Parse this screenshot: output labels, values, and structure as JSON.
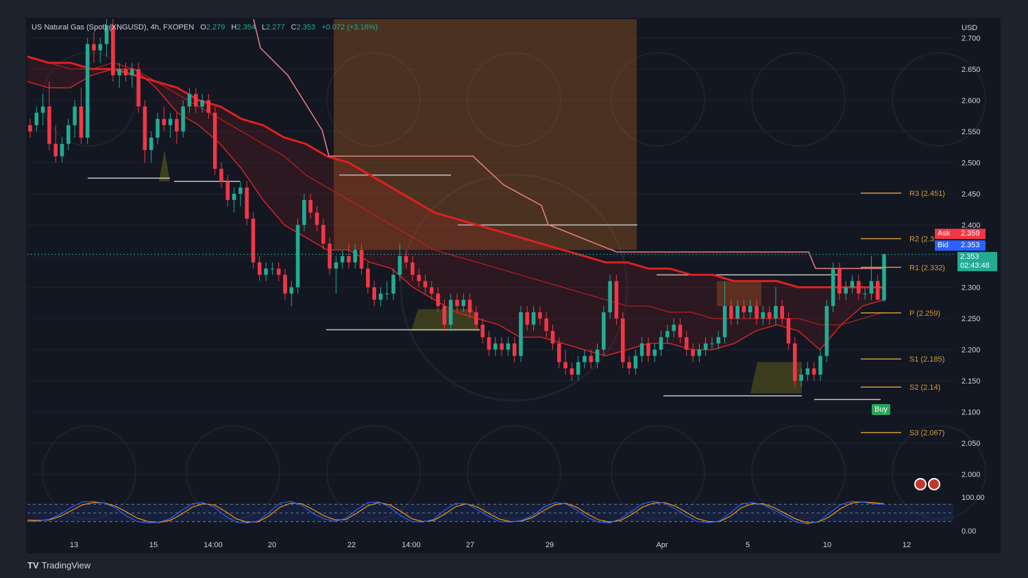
{
  "header": {
    "symbol": "US Natural Gas (Spot) (XNGUSD), 4h, FXOPEN",
    "open_label": "O",
    "open": "2.279",
    "high_label": "H",
    "high": "2.354",
    "low_label": "L",
    "low": "2.277",
    "close_label": "C",
    "close": "2.353",
    "change": "+0.072 (+3.16%)"
  },
  "price_scale": {
    "currency": "USD",
    "ticks": [
      "2.700",
      "2.650",
      "2.600",
      "2.550",
      "2.500",
      "2.450",
      "2.400",
      "2.350",
      "2.300",
      "2.250",
      "2.200",
      "2.150",
      "2.100",
      "2.050",
      "2.000"
    ]
  },
  "osc_scale": {
    "ticks": [
      "100.00",
      "0.00"
    ]
  },
  "time_axis": [
    "13",
    "15",
    "14:00",
    "20",
    "22",
    "14:00",
    "27",
    "29",
    "Apr",
    "5",
    "10",
    "12"
  ],
  "pivots": [
    {
      "label": "R3 (2.451)",
      "value": 2.451
    },
    {
      "label": "R2 (2.3",
      "value": 2.378
    },
    {
      "label": "R1 (2.332)",
      "value": 2.332
    },
    {
      "label": "P (2.259)",
      "value": 2.259
    },
    {
      "label": "S1 (2.185)",
      "value": 2.185
    },
    {
      "label": "S2 (2.14)",
      "value": 2.14
    },
    {
      "label": "S3 (2.067)",
      "value": 2.067
    }
  ],
  "quote": {
    "ask_label": "Ask",
    "ask": "2.359",
    "bid_label": "Bid",
    "bid": "2.353",
    "last": "2.353",
    "countdown": "02:43:48"
  },
  "signal": {
    "buy_label": "Buy"
  },
  "branding": {
    "logo_text": "TradingView"
  },
  "colors": {
    "up": "#22ab94",
    "down": "#f23645",
    "ema": "#e02020",
    "pivot": "#d49a3a"
  },
  "chart_data": {
    "type": "candlestick",
    "title": "US Natural Gas (Spot) (XNGUSD), 4h, FXOPEN",
    "ylabel": "USD",
    "ylim": [
      1.97,
      2.73
    ],
    "candles": [
      [
        2.56,
        2.57,
        2.54,
        2.55
      ],
      [
        2.56,
        2.59,
        2.55,
        2.58
      ],
      [
        2.58,
        2.61,
        2.56,
        2.59
      ],
      [
        2.59,
        2.63,
        2.52,
        2.53
      ],
      [
        2.53,
        2.56,
        2.5,
        2.51
      ],
      [
        2.51,
        2.54,
        2.5,
        2.53
      ],
      [
        2.53,
        2.57,
        2.52,
        2.56
      ],
      [
        2.56,
        2.6,
        2.54,
        2.59
      ],
      [
        2.59,
        2.62,
        2.53,
        2.54
      ],
      [
        2.54,
        2.7,
        2.53,
        2.69
      ],
      [
        2.69,
        2.71,
        2.66,
        2.68
      ],
      [
        2.68,
        2.7,
        2.66,
        2.69
      ],
      [
        2.69,
        2.73,
        2.67,
        2.72
      ],
      [
        2.72,
        2.73,
        2.63,
        2.64
      ],
      [
        2.64,
        2.66,
        2.62,
        2.65
      ],
      [
        2.65,
        2.66,
        2.63,
        2.64
      ],
      [
        2.64,
        2.66,
        2.62,
        2.65
      ],
      [
        2.65,
        2.66,
        2.58,
        2.59
      ],
      [
        2.59,
        2.6,
        2.5,
        2.52
      ],
      [
        2.52,
        2.55,
        2.5,
        2.54
      ],
      [
        2.54,
        2.58,
        2.53,
        2.57
      ],
      [
        2.57,
        2.59,
        2.55,
        2.56
      ],
      [
        2.56,
        2.58,
        2.54,
        2.57
      ],
      [
        2.57,
        2.58,
        2.53,
        2.55
      ],
      [
        2.55,
        2.6,
        2.54,
        2.59
      ],
      [
        2.59,
        2.62,
        2.58,
        2.61
      ],
      [
        2.61,
        2.62,
        2.58,
        2.59
      ],
      [
        2.59,
        2.61,
        2.58,
        2.6
      ],
      [
        2.6,
        2.61,
        2.57,
        2.58
      ],
      [
        2.58,
        2.59,
        2.48,
        2.49
      ],
      [
        2.49,
        2.5,
        2.46,
        2.47
      ],
      [
        2.47,
        2.48,
        2.43,
        2.44
      ],
      [
        2.44,
        2.46,
        2.42,
        2.45
      ],
      [
        2.45,
        2.47,
        2.43,
        2.46
      ],
      [
        2.46,
        2.47,
        2.4,
        2.41
      ],
      [
        2.41,
        2.42,
        2.33,
        2.34
      ],
      [
        2.34,
        2.35,
        2.31,
        2.32
      ],
      [
        2.32,
        2.34,
        2.31,
        2.33
      ],
      [
        2.33,
        2.34,
        2.32,
        2.33
      ],
      [
        2.33,
        2.34,
        2.31,
        2.32
      ],
      [
        2.32,
        2.33,
        2.28,
        2.29
      ],
      [
        2.29,
        2.31,
        2.27,
        2.3
      ],
      [
        2.3,
        2.41,
        2.29,
        2.4
      ],
      [
        2.4,
        2.45,
        2.39,
        2.44
      ],
      [
        2.44,
        2.45,
        2.41,
        2.42
      ],
      [
        2.42,
        2.43,
        2.39,
        2.4
      ],
      [
        2.4,
        2.41,
        2.36,
        2.37
      ],
      [
        2.37,
        2.38,
        2.32,
        2.33
      ],
      [
        2.33,
        2.35,
        2.29,
        2.34
      ],
      [
        2.34,
        2.36,
        2.33,
        2.35
      ],
      [
        2.35,
        2.37,
        2.33,
        2.34
      ],
      [
        2.34,
        2.37,
        2.33,
        2.36
      ],
      [
        2.36,
        2.37,
        2.32,
        2.33
      ],
      [
        2.33,
        2.34,
        2.29,
        2.3
      ],
      [
        2.3,
        2.31,
        2.27,
        2.28
      ],
      [
        2.28,
        2.3,
        2.27,
        2.29
      ],
      [
        2.29,
        2.31,
        2.28,
        2.29
      ],
      [
        2.29,
        2.33,
        2.28,
        2.32
      ],
      [
        2.32,
        2.37,
        2.31,
        2.35
      ],
      [
        2.35,
        2.36,
        2.33,
        2.34
      ],
      [
        2.34,
        2.35,
        2.31,
        2.32
      ],
      [
        2.32,
        2.33,
        2.3,
        2.31
      ],
      [
        2.31,
        2.32,
        2.29,
        2.3
      ],
      [
        2.3,
        2.31,
        2.28,
        2.29
      ],
      [
        2.29,
        2.3,
        2.26,
        2.27
      ],
      [
        2.27,
        2.28,
        2.23,
        2.24
      ],
      [
        2.24,
        2.29,
        2.23,
        2.28
      ],
      [
        2.28,
        2.29,
        2.26,
        2.27
      ],
      [
        2.27,
        2.29,
        2.26,
        2.28
      ],
      [
        2.28,
        2.29,
        2.25,
        2.26
      ],
      [
        2.26,
        2.27,
        2.23,
        2.24
      ],
      [
        2.24,
        2.25,
        2.21,
        2.22
      ],
      [
        2.22,
        2.23,
        2.19,
        2.2
      ],
      [
        2.2,
        2.22,
        2.19,
        2.21
      ],
      [
        2.21,
        2.22,
        2.19,
        2.2
      ],
      [
        2.2,
        2.22,
        2.19,
        2.21
      ],
      [
        2.21,
        2.22,
        2.18,
        2.19
      ],
      [
        2.19,
        2.27,
        2.18,
        2.26
      ],
      [
        2.26,
        2.27,
        2.23,
        2.24
      ],
      [
        2.24,
        2.27,
        2.23,
        2.26
      ],
      [
        2.26,
        2.27,
        2.24,
        2.25
      ],
      [
        2.25,
        2.26,
        2.22,
        2.23
      ],
      [
        2.23,
        2.24,
        2.2,
        2.21
      ],
      [
        2.21,
        2.22,
        2.17,
        2.18
      ],
      [
        2.18,
        2.2,
        2.16,
        2.17
      ],
      [
        2.17,
        2.18,
        2.15,
        2.16
      ],
      [
        2.16,
        2.19,
        2.15,
        2.18
      ],
      [
        2.18,
        2.2,
        2.17,
        2.19
      ],
      [
        2.19,
        2.2,
        2.17,
        2.18
      ],
      [
        2.18,
        2.21,
        2.17,
        2.2
      ],
      [
        2.2,
        2.27,
        2.19,
        2.26
      ],
      [
        2.26,
        2.32,
        2.25,
        2.31
      ],
      [
        2.31,
        2.32,
        2.24,
        2.25
      ],
      [
        2.25,
        2.26,
        2.17,
        2.18
      ],
      [
        2.18,
        2.19,
        2.16,
        2.17
      ],
      [
        2.17,
        2.2,
        2.16,
        2.19
      ],
      [
        2.19,
        2.22,
        2.18,
        2.21
      ],
      [
        2.21,
        2.22,
        2.18,
        2.19
      ],
      [
        2.19,
        2.21,
        2.18,
        2.2
      ],
      [
        2.2,
        2.23,
        2.19,
        2.22
      ],
      [
        2.22,
        2.24,
        2.21,
        2.23
      ],
      [
        2.23,
        2.25,
        2.22,
        2.24
      ],
      [
        2.24,
        2.25,
        2.21,
        2.22
      ],
      [
        2.22,
        2.23,
        2.19,
        2.2
      ],
      [
        2.2,
        2.21,
        2.18,
        2.19
      ],
      [
        2.19,
        2.21,
        2.18,
        2.2
      ],
      [
        2.2,
        2.22,
        2.19,
        2.21
      ],
      [
        2.21,
        2.22,
        2.2,
        2.21
      ],
      [
        2.21,
        2.23,
        2.2,
        2.22
      ],
      [
        2.22,
        2.31,
        2.21,
        2.27
      ],
      [
        2.27,
        2.28,
        2.24,
        2.25
      ],
      [
        2.25,
        2.28,
        2.24,
        2.27
      ],
      [
        2.27,
        2.28,
        2.25,
        2.26
      ],
      [
        2.26,
        2.28,
        2.25,
        2.27
      ],
      [
        2.27,
        2.28,
        2.24,
        2.25
      ],
      [
        2.25,
        2.27,
        2.24,
        2.26
      ],
      [
        2.26,
        2.27,
        2.24,
        2.25
      ],
      [
        2.25,
        2.3,
        2.24,
        2.27
      ],
      [
        2.27,
        2.28,
        2.24,
        2.25
      ],
      [
        2.25,
        2.26,
        2.2,
        2.21
      ],
      [
        2.21,
        2.22,
        2.14,
        2.15
      ],
      [
        2.15,
        2.17,
        2.14,
        2.16
      ],
      [
        2.16,
        2.18,
        2.15,
        2.17
      ],
      [
        2.17,
        2.18,
        2.15,
        2.16
      ],
      [
        2.16,
        2.2,
        2.15,
        2.19
      ],
      [
        2.19,
        2.28,
        2.18,
        2.27
      ],
      [
        2.27,
        2.34,
        2.26,
        2.33
      ],
      [
        2.33,
        2.34,
        2.28,
        2.29
      ],
      [
        2.29,
        2.31,
        2.28,
        2.3
      ],
      [
        2.3,
        2.32,
        2.29,
        2.31
      ],
      [
        2.31,
        2.32,
        2.28,
        2.29
      ],
      [
        2.29,
        2.3,
        2.28,
        2.29
      ],
      [
        2.29,
        2.35,
        2.28,
        2.31
      ],
      [
        2.31,
        2.32,
        2.28,
        2.28
      ],
      [
        2.279,
        2.354,
        2.277,
        2.353
      ]
    ],
    "ema_fast": [
      2.63,
      2.62,
      2.62,
      2.64,
      2.65,
      2.65,
      2.62,
      2.58,
      2.56,
      2.53,
      2.49,
      2.44,
      2.4,
      2.38,
      2.36,
      2.36,
      2.34,
      2.33,
      2.3,
      2.28,
      2.26,
      2.25,
      2.24,
      2.22,
      2.22,
      2.21,
      2.2,
      2.19,
      2.2,
      2.21,
      2.21,
      2.2,
      2.2,
      2.21,
      2.23,
      2.24,
      2.23,
      2.2,
      2.24,
      2.27,
      2.28
    ],
    "ema_slow": [
      2.67,
      2.66,
      2.65,
      2.65,
      2.66,
      2.65,
      2.63,
      2.61,
      2.59,
      2.57,
      2.55,
      2.53,
      2.51,
      2.48,
      2.46,
      2.44,
      2.42,
      2.4,
      2.38,
      2.36,
      2.35,
      2.34,
      2.33,
      2.32,
      2.31,
      2.3,
      2.29,
      2.28,
      2.27,
      2.27,
      2.26,
      2.26,
      2.25,
      2.25,
      2.25,
      2.25,
      2.25,
      2.24,
      2.24,
      2.25,
      2.26
    ],
    "ema_trend": [
      2.67,
      2.66,
      2.66,
      2.65,
      2.65,
      2.64,
      2.63,
      2.62,
      2.6,
      2.59,
      2.57,
      2.56,
      2.54,
      2.53,
      2.51,
      2.5,
      2.48,
      2.46,
      2.44,
      2.42,
      2.41,
      2.4,
      2.39,
      2.38,
      2.37,
      2.36,
      2.35,
      2.34,
      2.34,
      2.33,
      2.33,
      2.32,
      2.32,
      2.31,
      2.31,
      2.31,
      2.3,
      2.3,
      2.3,
      2.3,
      2.3
    ],
    "stoch_k": [
      20,
      22,
      28,
      45,
      70,
      88,
      90,
      84,
      68,
      40,
      20,
      15,
      18,
      30,
      58,
      82,
      86,
      70,
      40,
      18,
      15,
      22,
      52,
      84,
      90,
      76,
      48,
      30,
      20,
      32,
      62,
      86,
      88,
      70,
      40,
      20,
      18,
      28,
      60,
      84,
      82,
      60,
      38,
      20,
      18,
      24,
      40,
      70,
      86,
      82,
      60,
      34,
      18,
      15,
      30,
      55,
      82,
      90,
      84,
      64,
      40,
      20,
      16,
      22,
      50,
      82,
      86,
      78,
      60,
      40,
      18,
      12,
      20,
      48,
      78,
      90,
      88,
      82,
      80
    ],
    "stoch_d": [
      25,
      24,
      26,
      38,
      58,
      78,
      86,
      85,
      74,
      54,
      32,
      20,
      17,
      24,
      45,
      70,
      82,
      78,
      56,
      30,
      18,
      19,
      40,
      70,
      84,
      82,
      62,
      40,
      26,
      27,
      50,
      75,
      86,
      78,
      56,
      30,
      20,
      24,
      46,
      72,
      82,
      70,
      48,
      28,
      20,
      22,
      34,
      58,
      78,
      84,
      70,
      46,
      26,
      18,
      24,
      44,
      70,
      84,
      86,
      74,
      52,
      30,
      20,
      20,
      38,
      68,
      82,
      82,
      68,
      48,
      28,
      16,
      18,
      36,
      64,
      84,
      88,
      86,
      82
    ]
  }
}
